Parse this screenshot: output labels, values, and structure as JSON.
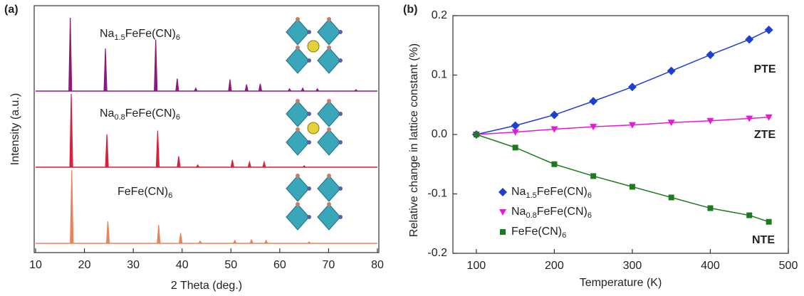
{
  "chart_data": [
    {
      "type": "spectrum",
      "panel_label": "(a)",
      "x_label": "2 Theta (deg.)",
      "y_label": "Intensity (a.u.)",
      "xlim": [
        10,
        80
      ],
      "xticks": [
        10,
        20,
        30,
        40,
        50,
        60,
        70,
        80
      ],
      "series": [
        {
          "name": "Na1.5FeFe(CN)6",
          "color": "#8b1a7e",
          "x": [
            17.1,
            24.3,
            34.6,
            39.0,
            42.8,
            49.8,
            53.2,
            56.0,
            62.0,
            64.7,
            67.7,
            75.6
          ],
          "values": [
            100,
            58,
            70,
            17,
            4,
            16,
            9,
            10,
            3,
            4,
            3,
            2
          ]
        },
        {
          "name": "Na0.8FeFe(CN)6",
          "color": "#d8213a",
          "x": [
            17.3,
            24.6,
            35.0,
            39.3,
            43.2,
            50.3,
            53.8,
            56.8,
            65.0
          ],
          "values": [
            100,
            45,
            50,
            15,
            3,
            10,
            7,
            7,
            2
          ]
        },
        {
          "name": "FeFe(CN)6",
          "color": "#e8835e",
          "x": [
            17.4,
            24.8,
            35.2,
            39.7,
            43.7,
            50.8,
            54.2,
            57.2,
            66.0
          ],
          "values": [
            100,
            30,
            25,
            14,
            3,
            4,
            5,
            4,
            2
          ]
        }
      ]
    },
    {
      "type": "line",
      "panel_label": "(b)",
      "x_label": "Temperature (K)",
      "y_label": "Relative change in lattice constant (%)",
      "xlim": [
        70,
        500
      ],
      "xticks": [
        100,
        200,
        300,
        400,
        500
      ],
      "ylim": [
        -0.2,
        0.2
      ],
      "yticks": [
        -0.2,
        -0.1,
        {
          "value": 0,
          "label": "0.0"
        },
        0.1,
        0.2
      ],
      "x": [
        100,
        150,
        200,
        250,
        300,
        350,
        400,
        450,
        475
      ],
      "legend": "lower left",
      "series": [
        {
          "name": "Na1.5FeFe(CN)6",
          "color": "#1f3fcf",
          "marker": "diamond",
          "values": [
            0,
            0.015,
            0.033,
            0.056,
            0.08,
            0.107,
            0.134,
            0.16,
            0.176
          ]
        },
        {
          "name": "Na0.8FeFe(CN)6",
          "color": "#e619d6",
          "marker": "triangle-down",
          "values": [
            0,
            0.004,
            0.009,
            0.013,
            0.016,
            0.02,
            0.023,
            0.027,
            0.029
          ]
        },
        {
          "name": "FeFe(CN)6",
          "color": "#1f7a1f",
          "marker": "square",
          "values": [
            0,
            -0.022,
            -0.05,
            -0.07,
            -0.088,
            -0.106,
            -0.124,
            -0.136,
            -0.147
          ]
        }
      ],
      "annotations": [
        {
          "text": "PTE",
          "color": "#1f3fcf"
        },
        {
          "text": "ZTE",
          "color": "#e619d6"
        },
        {
          "text": "NTE",
          "color": "#1f7a1f"
        }
      ]
    }
  ]
}
